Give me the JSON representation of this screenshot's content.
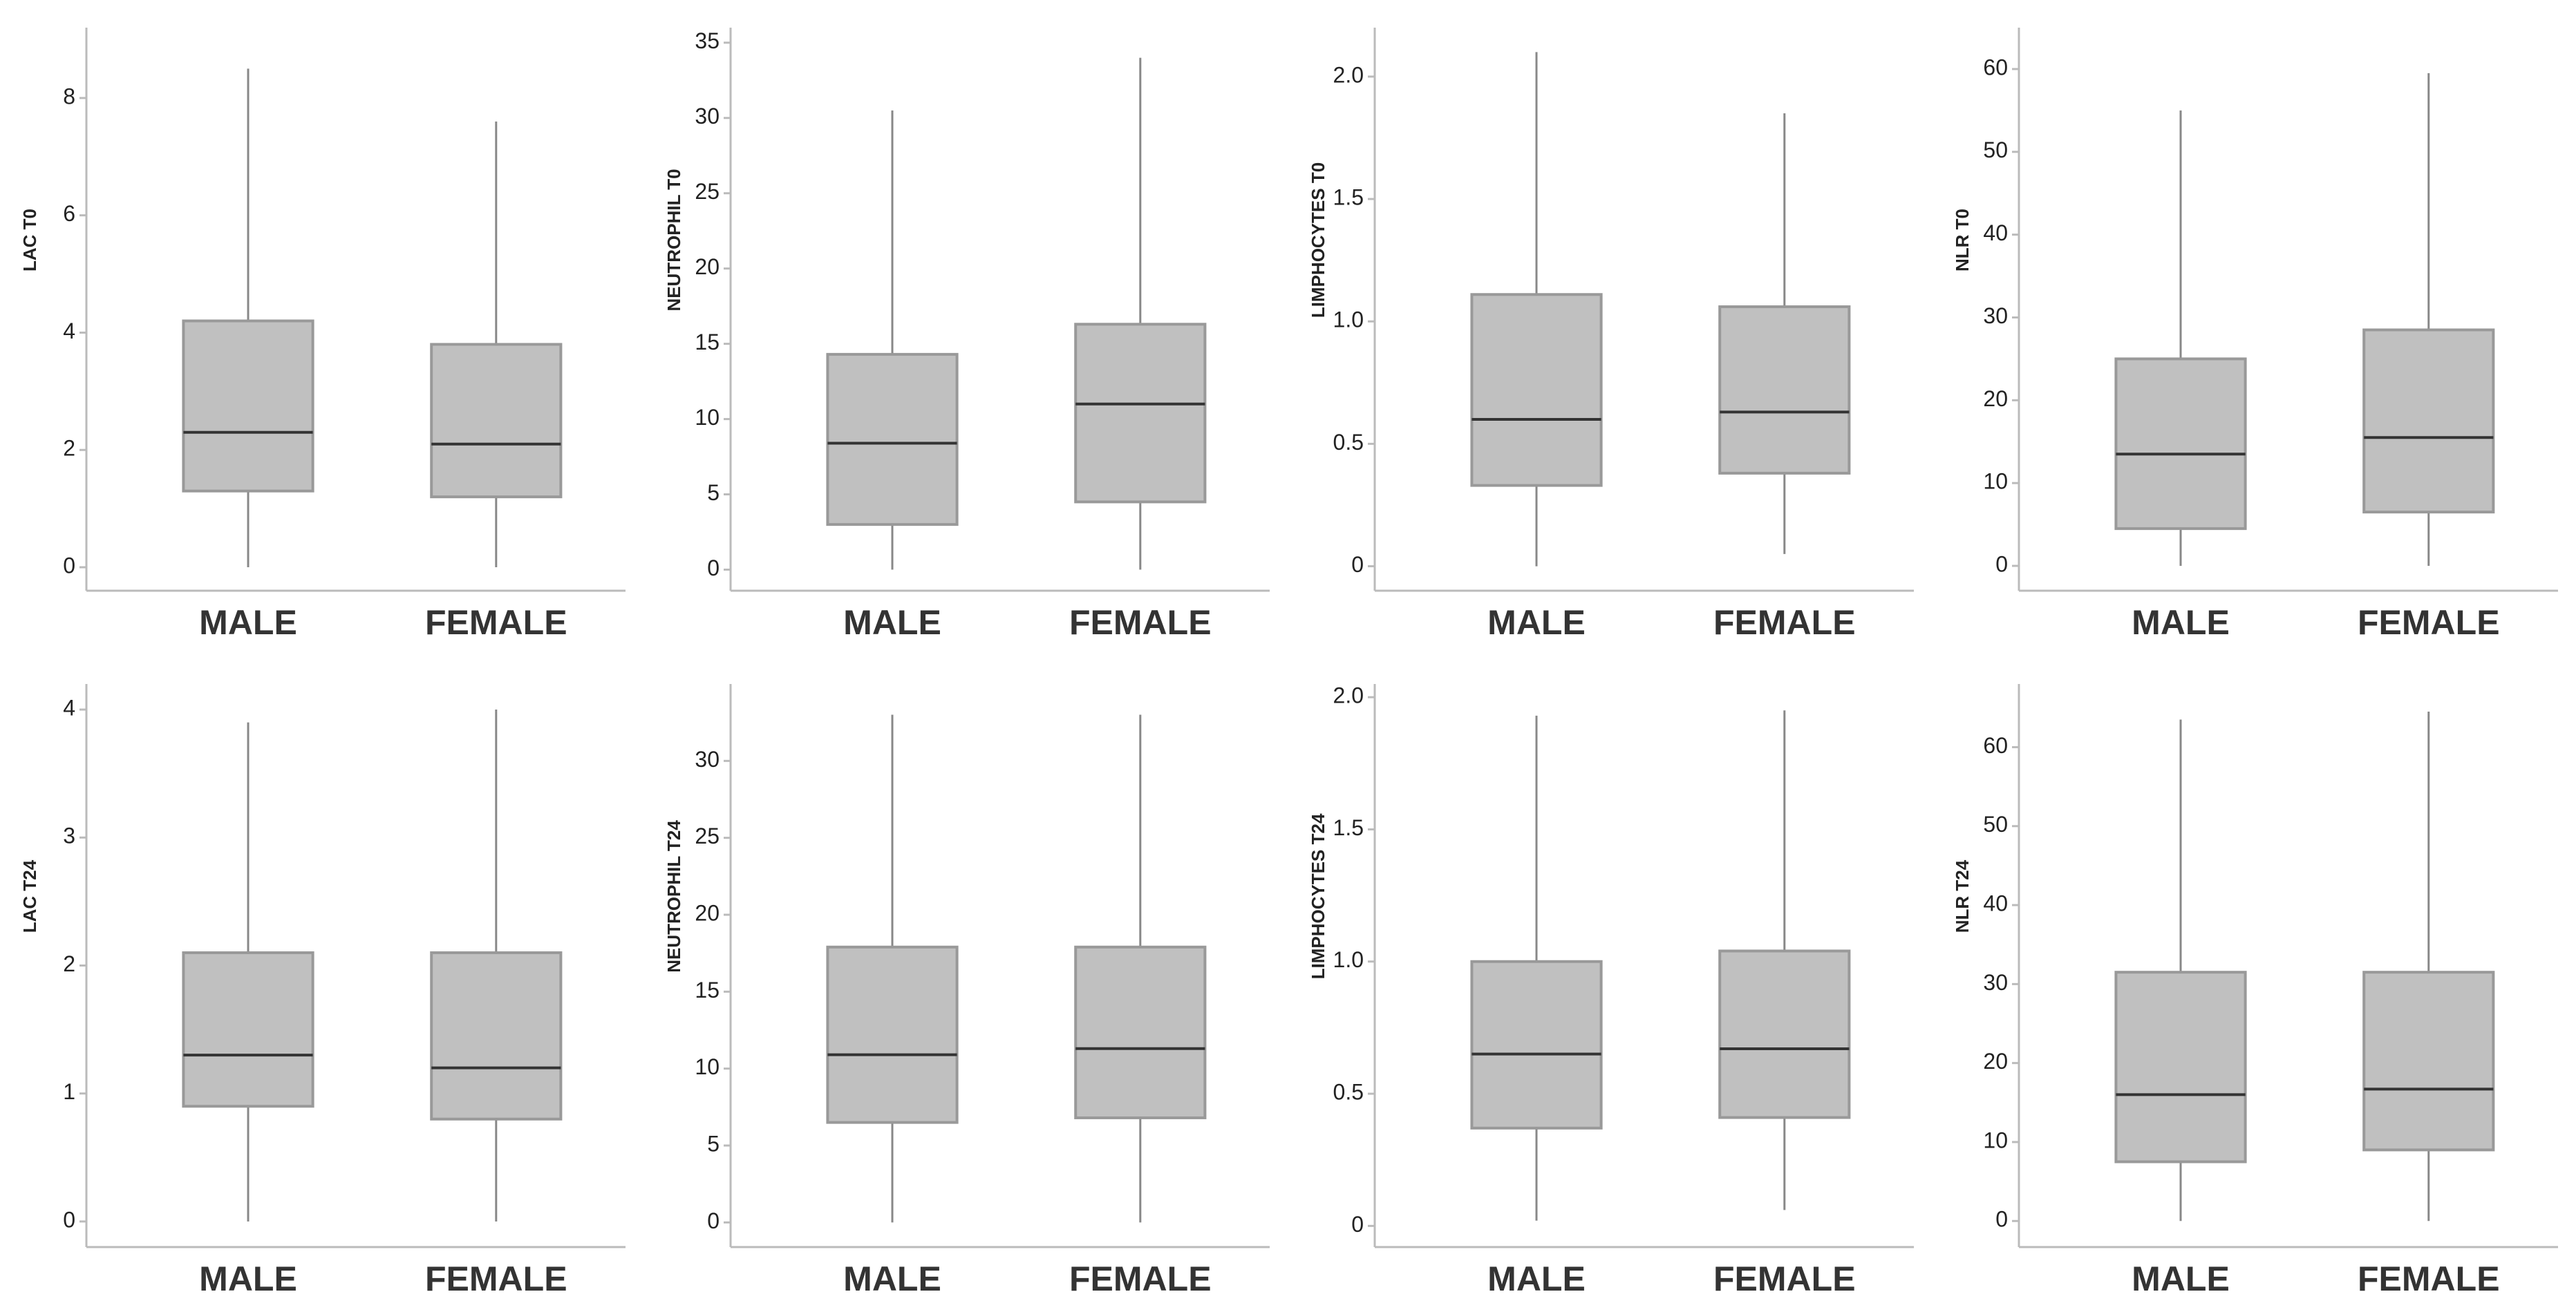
{
  "chart_data": [
    {
      "type": "box",
      "y_label": "LAC T0",
      "categories": [
        "MALE",
        "FEMALE"
      ],
      "values": [
        {
          "min": 0,
          "q1": 1.3,
          "median": 2.3,
          "q3": 4.2,
          "max": 8.5
        },
        {
          "min": 0,
          "q1": 1.2,
          "median": 2.1,
          "q3": 3.8,
          "max": 7.6
        }
      ],
      "ylim": [
        -0.4,
        9.2
      ],
      "yticks": [
        0,
        2,
        4,
        6,
        8
      ],
      "color": "#c0c0c0"
    },
    {
      "type": "box",
      "y_label": "NEUTROPHIL T0",
      "categories": [
        "MALE",
        "FEMALE"
      ],
      "values": [
        {
          "min": 0,
          "q1": 3,
          "median": 8.4,
          "q3": 14.3,
          "max": 30.5
        },
        {
          "min": 0,
          "q1": 4.5,
          "median": 11,
          "q3": 16.3,
          "max": 34
        }
      ],
      "ylim": [
        -1.4,
        36
      ],
      "yticks": [
        0,
        5,
        10,
        15,
        20,
        25,
        30,
        35
      ],
      "color": "#c0c0c0"
    },
    {
      "type": "box",
      "y_label": "LIMPHOCYTES T0",
      "categories": [
        "MALE",
        "FEMALE"
      ],
      "values": [
        {
          "min": 0,
          "q1": 0.33,
          "median": 0.6,
          "q3": 1.11,
          "max": 2.1
        },
        {
          "min": 0.05,
          "q1": 0.38,
          "median": 0.63,
          "q3": 1.06,
          "max": 1.85
        }
      ],
      "ylim": [
        -0.1,
        2.2
      ],
      "yticks": [
        0,
        0.5,
        {
          "value": 1,
          "label": "1.0"
        },
        1.5,
        {
          "value": 2,
          "label": "2.0"
        }
      ],
      "color": "#c0c0c0"
    },
    {
      "type": "box",
      "y_label": "NLR T0",
      "categories": [
        "MALE",
        "FEMALE"
      ],
      "values": [
        {
          "min": 0,
          "q1": 4.5,
          "median": 13.5,
          "q3": 25,
          "max": 55
        },
        {
          "min": 0,
          "q1": 6.5,
          "median": 15.5,
          "q3": 28.5,
          "max": 59.5
        }
      ],
      "ylim": [
        -3,
        65
      ],
      "yticks": [
        0,
        10,
        20,
        30,
        40,
        50,
        60
      ],
      "color": "#c0c0c0"
    },
    {
      "type": "box",
      "y_label": "LAC T24",
      "categories": [
        "MALE",
        "FEMALE"
      ],
      "values": [
        {
          "min": 0,
          "q1": 0.9,
          "median": 1.3,
          "q3": 2.1,
          "max": 3.9
        },
        {
          "min": 0,
          "q1": 0.8,
          "median": 1.2,
          "q3": 2.1,
          "max": 4
        }
      ],
      "ylim": [
        -0.2,
        4.2
      ],
      "yticks": [
        0,
        1,
        2,
        3,
        4
      ],
      "color": "#c0c0c0"
    },
    {
      "type": "box",
      "y_label": "NEUTROPHIL T24",
      "categories": [
        "MALE",
        "FEMALE"
      ],
      "values": [
        {
          "min": 0,
          "q1": 6.5,
          "median": 10.9,
          "q3": 17.9,
          "max": 33
        },
        {
          "min": 0,
          "q1": 6.8,
          "median": 11.3,
          "q3": 17.9,
          "max": 33
        }
      ],
      "ylim": [
        -1.6,
        35
      ],
      "yticks": [
        0,
        5,
        10,
        15,
        20,
        25,
        30
      ],
      "color": "#c0c0c0"
    },
    {
      "type": "box",
      "y_label": "LIMPHOCYTES T24",
      "categories": [
        "MALE",
        "FEMALE"
      ],
      "values": [
        {
          "min": 0.02,
          "q1": 0.37,
          "median": 0.65,
          "q3": 1,
          "max": 1.93
        },
        {
          "min": 0.06,
          "q1": 0.41,
          "median": 0.67,
          "q3": 1.04,
          "max": 1.95
        }
      ],
      "ylim": [
        -0.08,
        2.05
      ],
      "yticks": [
        0,
        0.5,
        {
          "value": 1,
          "label": "1.0"
        },
        1.5,
        {
          "value": 2,
          "label": "2.0"
        }
      ],
      "color": "#c0c0c0"
    },
    {
      "type": "box",
      "y_label": "NLR T24",
      "categories": [
        "MALE",
        "FEMALE"
      ],
      "values": [
        {
          "min": 0,
          "q1": 7.5,
          "median": 16,
          "q3": 31.5,
          "max": 63.5
        },
        {
          "min": 0,
          "q1": 9,
          "median": 16.7,
          "q3": 31.5,
          "max": 64.5
        }
      ],
      "ylim": [
        -3.3,
        68
      ],
      "yticks": [
        0,
        10,
        20,
        30,
        40,
        50,
        60
      ],
      "color": "#c0c0c0"
    }
  ]
}
